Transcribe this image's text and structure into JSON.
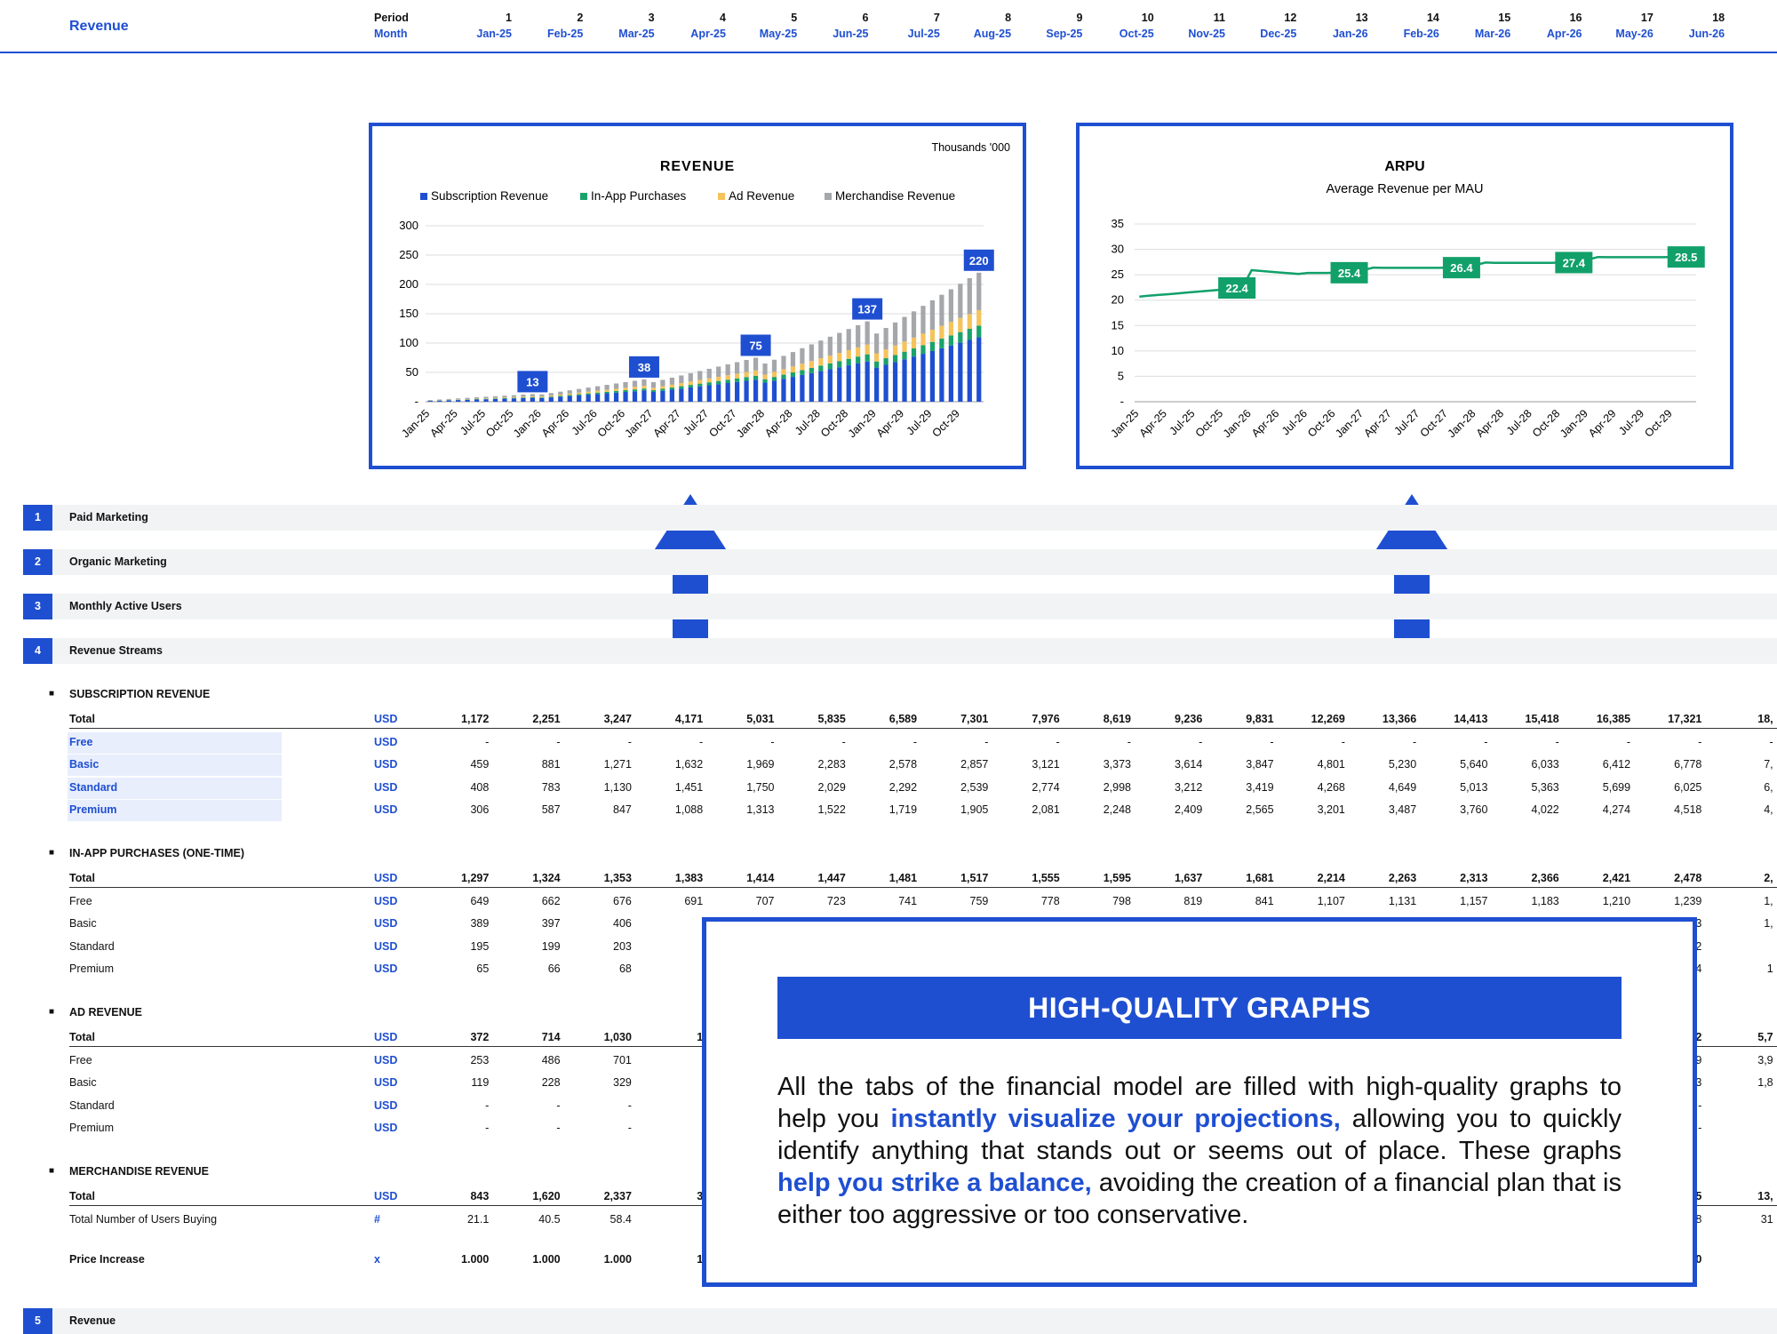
{
  "header": {
    "title": "Revenue",
    "period_label": "Period",
    "month_label": "Month",
    "period_numbers": [
      "1",
      "2",
      "3",
      "4",
      "5",
      "6",
      "7",
      "8",
      "9",
      "10",
      "11",
      "12",
      "13",
      "14",
      "15",
      "16",
      "17",
      "18"
    ],
    "months": [
      "Jan-25",
      "Feb-25",
      "Mar-25",
      "Apr-25",
      "May-25",
      "Jun-25",
      "Jul-25",
      "Aug-25",
      "Sep-25",
      "Oct-25",
      "Nov-25",
      "Dec-25",
      "Jan-26",
      "Feb-26",
      "Mar-26",
      "Apr-26",
      "May-26",
      "Jun-26"
    ]
  },
  "charts": {
    "revenue_units": "Thousands '000",
    "arpu_subtitle": "Average Revenue per MAU"
  },
  "chart_data": [
    {
      "type": "bar",
      "stacked": true,
      "title": "REVENUE",
      "x_tick_labels": [
        "Jan-25",
        "Apr-25",
        "Jul-25",
        "Oct-25",
        "Jan-26",
        "Apr-26",
        "Jul-26",
        "Oct-26",
        "Jan-27",
        "Apr-27",
        "Jul-27",
        "Oct-27",
        "Jan-28",
        "Apr-28",
        "Jul-28",
        "Oct-28",
        "Jan-29",
        "Apr-29",
        "Jul-29",
        "Oct-29"
      ],
      "ylim": [
        0,
        300
      ],
      "y_ticks": [
        "-",
        "50",
        "100",
        "150",
        "200",
        "250",
        "300"
      ],
      "legend_position": "top",
      "grid": true,
      "series": [
        {
          "name": "Subscription Revenue",
          "color": "#1f4fd1"
        },
        {
          "name": "In-App Purchases",
          "color": "#1aa26b"
        },
        {
          "name": "Ad Revenue",
          "color": "#f5c35c"
        },
        {
          "name": "Merchandise Revenue",
          "color": "#a5a7ab"
        }
      ],
      "annotations": [
        {
          "period": "Dec-25",
          "value": 13
        },
        {
          "period": "Dec-26",
          "value": 38
        },
        {
          "period": "Dec-27",
          "value": 75
        },
        {
          "period": "Dec-28",
          "value": 137
        },
        {
          "period": "Dec-29",
          "value": 220
        }
      ]
    },
    {
      "type": "line",
      "title": "ARPU",
      "subtitle": "Average Revenue per MAU",
      "x_tick_labels": [
        "Jan-25",
        "Apr-25",
        "Jul-25",
        "Oct-25",
        "Jan-26",
        "Apr-26",
        "Jul-26",
        "Oct-26",
        "Jan-27",
        "Apr-27",
        "Jul-27",
        "Oct-27",
        "Jan-28",
        "Apr-28",
        "Jul-28",
        "Oct-28",
        "Jan-29",
        "Apr-29",
        "Jul-29",
        "Oct-29"
      ],
      "ylim": [
        0,
        35
      ],
      "y_ticks": [
        "-",
        "5",
        "10",
        "15",
        "20",
        "25",
        "30",
        "35"
      ],
      "grid": true,
      "color": "#12a06a",
      "annotations": [
        {
          "period": "Dec-25",
          "value": 22.4
        },
        {
          "period": "Dec-26",
          "value": 25.4
        },
        {
          "period": "Dec-27",
          "value": 26.4
        },
        {
          "period": "Dec-28",
          "value": 27.4
        },
        {
          "period": "Dec-29",
          "value": 28.5
        }
      ]
    }
  ],
  "sections": [
    {
      "num": "1",
      "label": "Paid Marketing"
    },
    {
      "num": "2",
      "label": "Organic Marketing"
    },
    {
      "num": "3",
      "label": "Monthly Active Users"
    },
    {
      "num": "4",
      "label": "Revenue Streams"
    },
    {
      "num": "5",
      "label": "Revenue"
    }
  ],
  "subscription": {
    "heading": "SUBSCRIPTION REVENUE",
    "rows": [
      {
        "label": "Total",
        "unit": "USD",
        "values": [
          "1,172",
          "2,251",
          "3,247",
          "4,171",
          "5,031",
          "5,835",
          "6,589",
          "7,301",
          "7,976",
          "8,619",
          "9,236",
          "9,831",
          "12,269",
          "13,366",
          "14,413",
          "15,418",
          "16,385",
          "17,321",
          "18,"
        ]
      },
      {
        "label": "Free",
        "unit": "USD",
        "values": [
          "-",
          "-",
          "-",
          "-",
          "-",
          "-",
          "-",
          "-",
          "-",
          "-",
          "-",
          "-",
          "-",
          "-",
          "-",
          "-",
          "-",
          "-",
          "-"
        ]
      },
      {
        "label": "Basic",
        "unit": "USD",
        "values": [
          "459",
          "881",
          "1,271",
          "1,632",
          "1,969",
          "2,283",
          "2,578",
          "2,857",
          "3,121",
          "3,373",
          "3,614",
          "3,847",
          "4,801",
          "5,230",
          "5,640",
          "6,033",
          "6,412",
          "6,778",
          "7,"
        ]
      },
      {
        "label": "Standard",
        "unit": "USD",
        "values": [
          "408",
          "783",
          "1,130",
          "1,451",
          "1,750",
          "2,029",
          "2,292",
          "2,539",
          "2,774",
          "2,998",
          "3,212",
          "3,419",
          "4,268",
          "4,649",
          "5,013",
          "5,363",
          "5,699",
          "6,025",
          "6,"
        ]
      },
      {
        "label": "Premium",
        "unit": "USD",
        "values": [
          "306",
          "587",
          "847",
          "1,088",
          "1,313",
          "1,522",
          "1,719",
          "1,905",
          "2,081",
          "2,248",
          "2,409",
          "2,565",
          "3,201",
          "3,487",
          "3,760",
          "4,022",
          "4,274",
          "4,518",
          "4,"
        ]
      }
    ]
  },
  "in_app": {
    "heading": "IN-APP PURCHASES (ONE-TIME)",
    "rows": [
      {
        "label": "Total",
        "unit": "USD",
        "values": [
          "1,297",
          "1,324",
          "1,353",
          "1,383",
          "1,414",
          "1,447",
          "1,481",
          "1,517",
          "1,555",
          "1,595",
          "1,637",
          "1,681",
          "2,214",
          "2,263",
          "2,313",
          "2,366",
          "2,421",
          "2,478",
          "2,"
        ]
      },
      {
        "label": "Free",
        "unit": "USD",
        "values": [
          "649",
          "662",
          "676",
          "691",
          "707",
          "723",
          "741",
          "759",
          "778",
          "798",
          "819",
          "841",
          "1,107",
          "1,131",
          "1,157",
          "1,183",
          "1,210",
          "1,239",
          "1,"
        ]
      },
      {
        "label": "Basic",
        "unit": "USD",
        "values": [
          "389",
          "397",
          "406",
          "",
          "",
          "",
          "",
          "",
          "",
          "",
          "",
          "",
          "",
          "",
          "",
          "",
          "",
          "743",
          "1,"
        ]
      },
      {
        "label": "Standard",
        "unit": "USD",
        "values": [
          "195",
          "199",
          "203",
          "",
          "",
          "",
          "",
          "",
          "",
          "",
          "",
          "",
          "",
          "",
          "",
          "",
          "",
          "372",
          ""
        ]
      },
      {
        "label": "Premium",
        "unit": "USD",
        "values": [
          "65",
          "66",
          "68",
          "",
          "",
          "",
          "",
          "",
          "",
          "",
          "",
          "",
          "",
          "",
          "",
          "",
          "",
          "124",
          "1"
        ]
      }
    ]
  },
  "ad": {
    "heading": "AD REVENUE",
    "rows": [
      {
        "label": "Total",
        "unit": "USD",
        "values": [
          "372",
          "714",
          "1,030",
          "1",
          "",
          "",
          "",
          "",
          "",
          "",
          "",
          "",
          "",
          "",
          "",
          "",
          "",
          "5,492",
          "5,7"
        ]
      },
      {
        "label": "Free",
        "unit": "USD",
        "values": [
          "253",
          "486",
          "701",
          "",
          "",
          "",
          "",
          "",
          "",
          "",
          "",
          "",
          "",
          "",
          "",
          "",
          "",
          "3,739",
          "3,9"
        ]
      },
      {
        "label": "Basic",
        "unit": "USD",
        "values": [
          "119",
          "228",
          "329",
          "",
          "",
          "",
          "",
          "",
          "",
          "",
          "",
          "",
          "",
          "",
          "",
          "",
          "",
          "1,753",
          "1,8"
        ]
      },
      {
        "label": "Standard",
        "unit": "USD",
        "values": [
          "-",
          "-",
          "-",
          "",
          "",
          "",
          "",
          "",
          "",
          "",
          "",
          "",
          "",
          "",
          "",
          "",
          "",
          "-",
          ""
        ]
      },
      {
        "label": "Premium",
        "unit": "USD",
        "values": [
          "-",
          "-",
          "-",
          "",
          "",
          "",
          "",
          "",
          "",
          "",
          "",
          "",
          "",
          "",
          "",
          "",
          "",
          "-",
          ""
        ]
      }
    ]
  },
  "merch": {
    "heading": "MERCHANDISE REVENUE",
    "rows": [
      {
        "label": "Total",
        "unit": "USD",
        "values": [
          "843",
          "1,620",
          "2,337",
          "3",
          "",
          "",
          "",
          "",
          "",
          "",
          "",
          "",
          "",
          "",
          "",
          "",
          "",
          "2,465",
          "13,"
        ]
      },
      {
        "label": "Total Number of Users Buying",
        "unit": "#",
        "values": [
          "21.1",
          "40.5",
          "58.4",
          "",
          "",
          "",
          "",
          "",
          "",
          "",
          "",
          "",
          "",
          "",
          "",
          "",
          "",
          "296.8",
          "31"
        ]
      }
    ]
  },
  "price_increase": {
    "label": "Price Increase",
    "unit": "x",
    "values": [
      "1.000",
      "1.000",
      "1.000",
      "1",
      "",
      "",
      "",
      "",
      "",
      "",
      "",
      "",
      "",
      "",
      "",
      "",
      "",
      "1.050",
      ""
    ]
  },
  "callout": {
    "title": "HIGH-QUALITY GRAPHS",
    "text_1": "All the tabs of the financial model are filled with high-quality graphs to help you ",
    "em_1": "instantly visualize your projections,",
    "text_2": " allowing you to quickly identify anything that stands out or seems out of place. These graphs ",
    "em_2": "help you strike a balance,",
    "text_3": " avoiding the creation of a financial plan that is either too aggressive or too conservative."
  }
}
